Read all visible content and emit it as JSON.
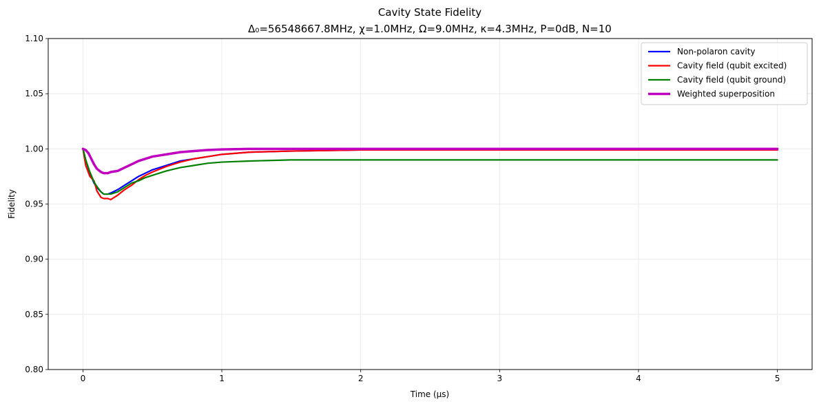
{
  "chart_data": {
    "type": "line",
    "title": "Cavity State Fidelity",
    "subtitle": "Δ₀=56548667.8MHz, χ=1.0MHz, Ω=9.0MHz, κ=4.3MHz, P=0dB, N=10",
    "xlabel": "Time (μs)",
    "ylabel": "Fidelity",
    "xlim": [
      -0.25,
      5.25
    ],
    "ylim": [
      0.8,
      1.1
    ],
    "xticks": [
      0,
      1,
      2,
      3,
      4,
      5
    ],
    "xtick_labels": [
      "0",
      "1",
      "2",
      "3",
      "4",
      "5"
    ],
    "yticks": [
      0.8,
      0.85,
      0.9,
      0.95,
      1.0,
      1.05,
      1.1
    ],
    "ytick_labels": [
      "0.80",
      "0.85",
      "0.90",
      "0.95",
      "1.00",
      "1.05",
      "1.10"
    ],
    "grid": true,
    "legend_position": "top-right",
    "series": [
      {
        "name": "Non-polaron cavity",
        "color": "#0000ff",
        "x": [
          0,
          0.02,
          0.05,
          0.08,
          0.1,
          0.13,
          0.15,
          0.18,
          0.2,
          0.25,
          0.3,
          0.35,
          0.4,
          0.45,
          0.5,
          0.6,
          0.7,
          0.8,
          0.9,
          1.0,
          1.2,
          1.5,
          2.0,
          2.5,
          3.0,
          4.0,
          5.0
        ],
        "values": [
          1.0,
          0.99,
          0.978,
          0.969,
          0.965,
          0.961,
          0.959,
          0.959,
          0.96,
          0.963,
          0.967,
          0.971,
          0.975,
          0.978,
          0.981,
          0.985,
          0.989,
          0.991,
          0.993,
          0.995,
          0.997,
          0.998,
          0.999,
          0.999,
          0.999,
          0.999,
          0.999
        ]
      },
      {
        "name": "Cavity field (qubit excited)",
        "color": "#ff0000",
        "x": [
          0,
          0.02,
          0.05,
          0.08,
          0.1,
          0.13,
          0.15,
          0.18,
          0.2,
          0.25,
          0.3,
          0.35,
          0.4,
          0.45,
          0.5,
          0.6,
          0.7,
          0.8,
          0.9,
          1.0,
          1.2,
          1.5,
          2.0,
          2.5,
          3.0,
          4.0,
          5.0
        ],
        "values": [
          1.0,
          0.985,
          0.975,
          0.971,
          0.962,
          0.956,
          0.955,
          0.955,
          0.954,
          0.958,
          0.963,
          0.967,
          0.972,
          0.976,
          0.979,
          0.984,
          0.988,
          0.991,
          0.993,
          0.995,
          0.997,
          0.998,
          0.999,
          0.999,
          0.999,
          0.999,
          0.999
        ]
      },
      {
        "name": "Cavity field (qubit ground)",
        "color": "#008000",
        "x": [
          0,
          0.02,
          0.05,
          0.08,
          0.1,
          0.13,
          0.15,
          0.18,
          0.2,
          0.25,
          0.3,
          0.35,
          0.4,
          0.45,
          0.5,
          0.6,
          0.7,
          0.8,
          0.9,
          1.0,
          1.2,
          1.5,
          2.0,
          2.5,
          3.0,
          4.0,
          5.0
        ],
        "values": [
          1.0,
          0.99,
          0.979,
          0.97,
          0.966,
          0.961,
          0.959,
          0.959,
          0.959,
          0.961,
          0.965,
          0.969,
          0.971,
          0.974,
          0.976,
          0.98,
          0.983,
          0.985,
          0.987,
          0.988,
          0.989,
          0.99,
          0.99,
          0.99,
          0.99,
          0.99,
          0.99
        ]
      },
      {
        "name": "Weighted superposition",
        "color": "#bf00bf",
        "x": [
          0,
          0.02,
          0.04,
          0.06,
          0.08,
          0.1,
          0.13,
          0.15,
          0.18,
          0.2,
          0.25,
          0.3,
          0.35,
          0.4,
          0.5,
          0.6,
          0.7,
          0.8,
          0.9,
          1.0,
          1.2,
          1.5,
          2.0,
          3.0,
          4.0,
          5.0
        ],
        "values": [
          1.0,
          0.999,
          0.996,
          0.991,
          0.986,
          0.982,
          0.979,
          0.978,
          0.978,
          0.979,
          0.98,
          0.983,
          0.986,
          0.989,
          0.993,
          0.995,
          0.997,
          0.998,
          0.999,
          0.9995,
          1.0,
          1.0,
          1.0,
          1.0,
          1.0,
          1.0
        ]
      }
    ]
  }
}
